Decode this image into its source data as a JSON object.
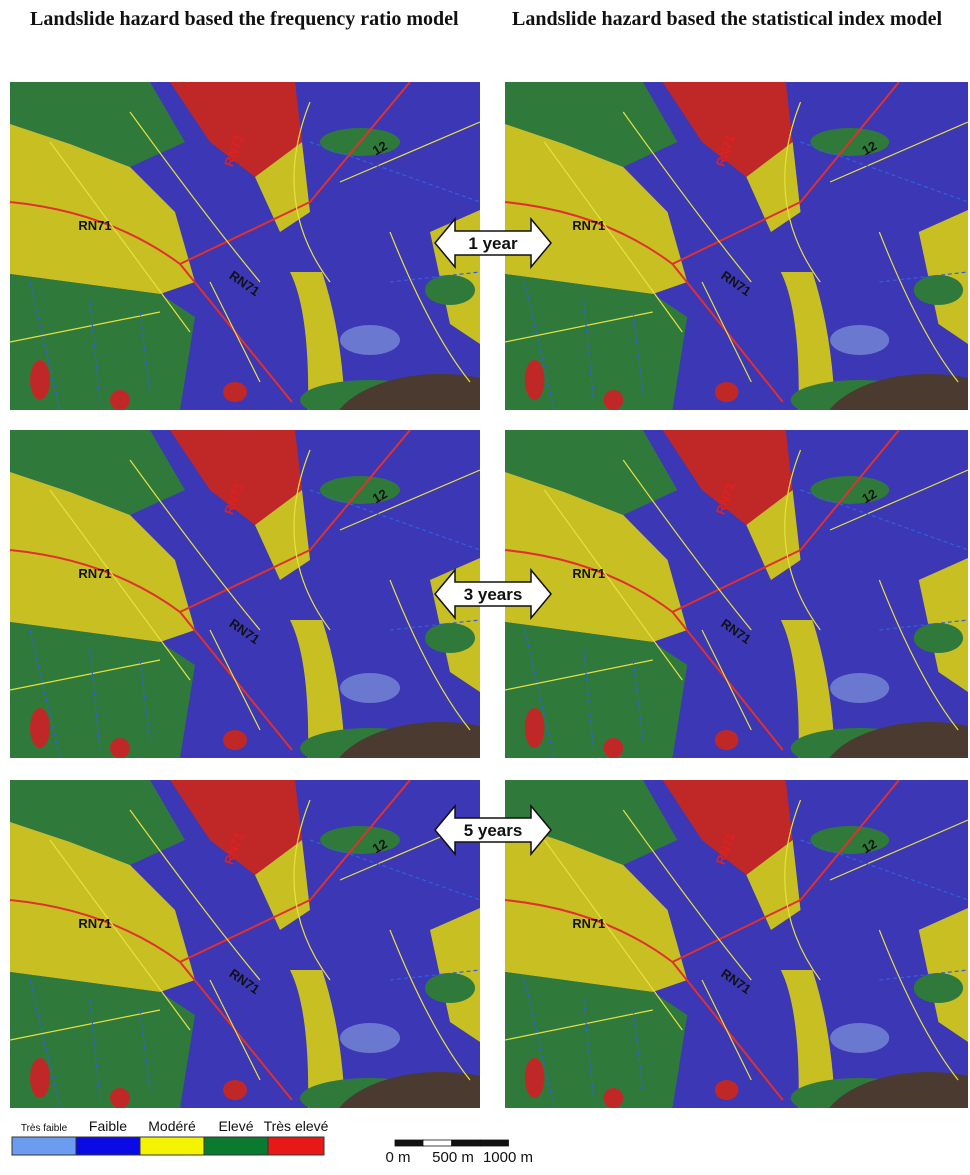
{
  "columns": [
    {
      "title": "Landslide hazard based the frequency ratio model"
    },
    {
      "title": "Landslide hazard based the statistical index model"
    }
  ],
  "rows": [
    {
      "period": "1 year"
    },
    {
      "period": "3 years"
    },
    {
      "period": "5 years"
    }
  ],
  "map_labels": [
    "RN71",
    "RN71",
    "RN71",
    "12"
  ],
  "legend": {
    "classes": [
      {
        "label": "Très faible",
        "color": "#6b9cf0"
      },
      {
        "label": "Faible",
        "color": "#0a0ae6"
      },
      {
        "label": "Modéré",
        "color": "#f4f400"
      },
      {
        "label": "Elevé",
        "color": "#0a7a2e"
      },
      {
        "label": "Très elevé",
        "color": "#e81818"
      }
    ]
  },
  "scale_bar": {
    "labels": [
      "0 m",
      "500 m",
      "1000 m"
    ]
  }
}
